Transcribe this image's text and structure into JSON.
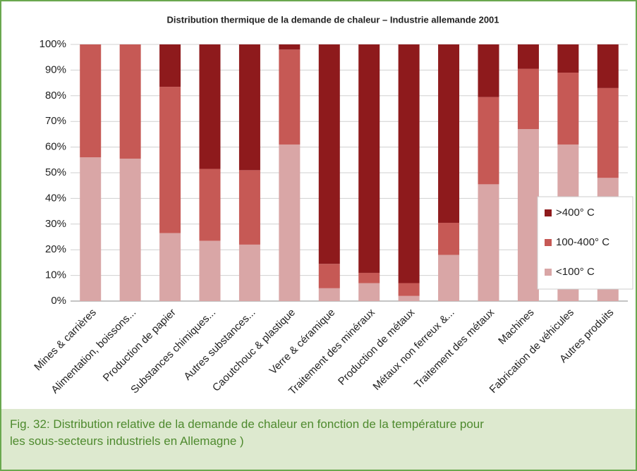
{
  "chart_data": {
    "type": "stacked_bar",
    "title": "Distribution thermique de la demande de chaleur – Industrie allemande 2001",
    "categories": [
      "Mines & carrières",
      "Alimentation, boissons...",
      "Production de papier",
      "Substances chimiques...",
      "Autres substances...",
      "Caoutchouc & plastique",
      "Verre & céramique",
      "Traitement des minéraux",
      "Production de métaux",
      "Métaux non ferreux &...",
      "Traitement des métaux",
      "Machines",
      "Fabrication de véhicules",
      "Autres produits"
    ],
    "series": [
      {
        "name": "<100° C",
        "color": "#d9a6a6",
        "values": [
          56,
          55.5,
          26.5,
          23.5,
          22,
          61,
          5,
          7,
          2,
          18,
          45.5,
          67,
          61,
          48
        ]
      },
      {
        "name": "100-400° C",
        "color": "#c65955",
        "values": [
          44,
          44.5,
          57,
          28,
          29,
          37,
          9.5,
          4,
          5,
          12.5,
          34,
          23.5,
          28,
          35
        ]
      },
      {
        "name": ">400° C",
        "color": "#8e1a1c",
        "values": [
          0,
          0,
          16.5,
          48.5,
          49,
          2,
          85.5,
          89,
          93,
          69.5,
          20.5,
          9.5,
          11,
          17
        ]
      }
    ],
    "ylim": [
      0,
      100
    ],
    "yticks": [
      {
        "value": 0,
        "label": "0%"
      },
      {
        "value": 10,
        "label": "10%"
      },
      {
        "value": 20,
        "label": "20%"
      },
      {
        "value": 30,
        "label": "30%"
      },
      {
        "value": 40,
        "label": "40%"
      },
      {
        "value": 50,
        "label": "50%"
      },
      {
        "value": 60,
        "label": "60%"
      },
      {
        "value": 70,
        "label": "70%"
      },
      {
        "value": 80,
        "label": "80%"
      },
      {
        "value": 90,
        "label": "90%"
      },
      {
        "value": 100,
        "label": "100%"
      }
    ],
    "grid": true,
    "legend": "right"
  },
  "caption": [
    "Fig. 32: Distribution relative de la demande de chaleur en fonction de la température pour",
    "les sous-secteurs industriels en Allemagne )"
  ]
}
